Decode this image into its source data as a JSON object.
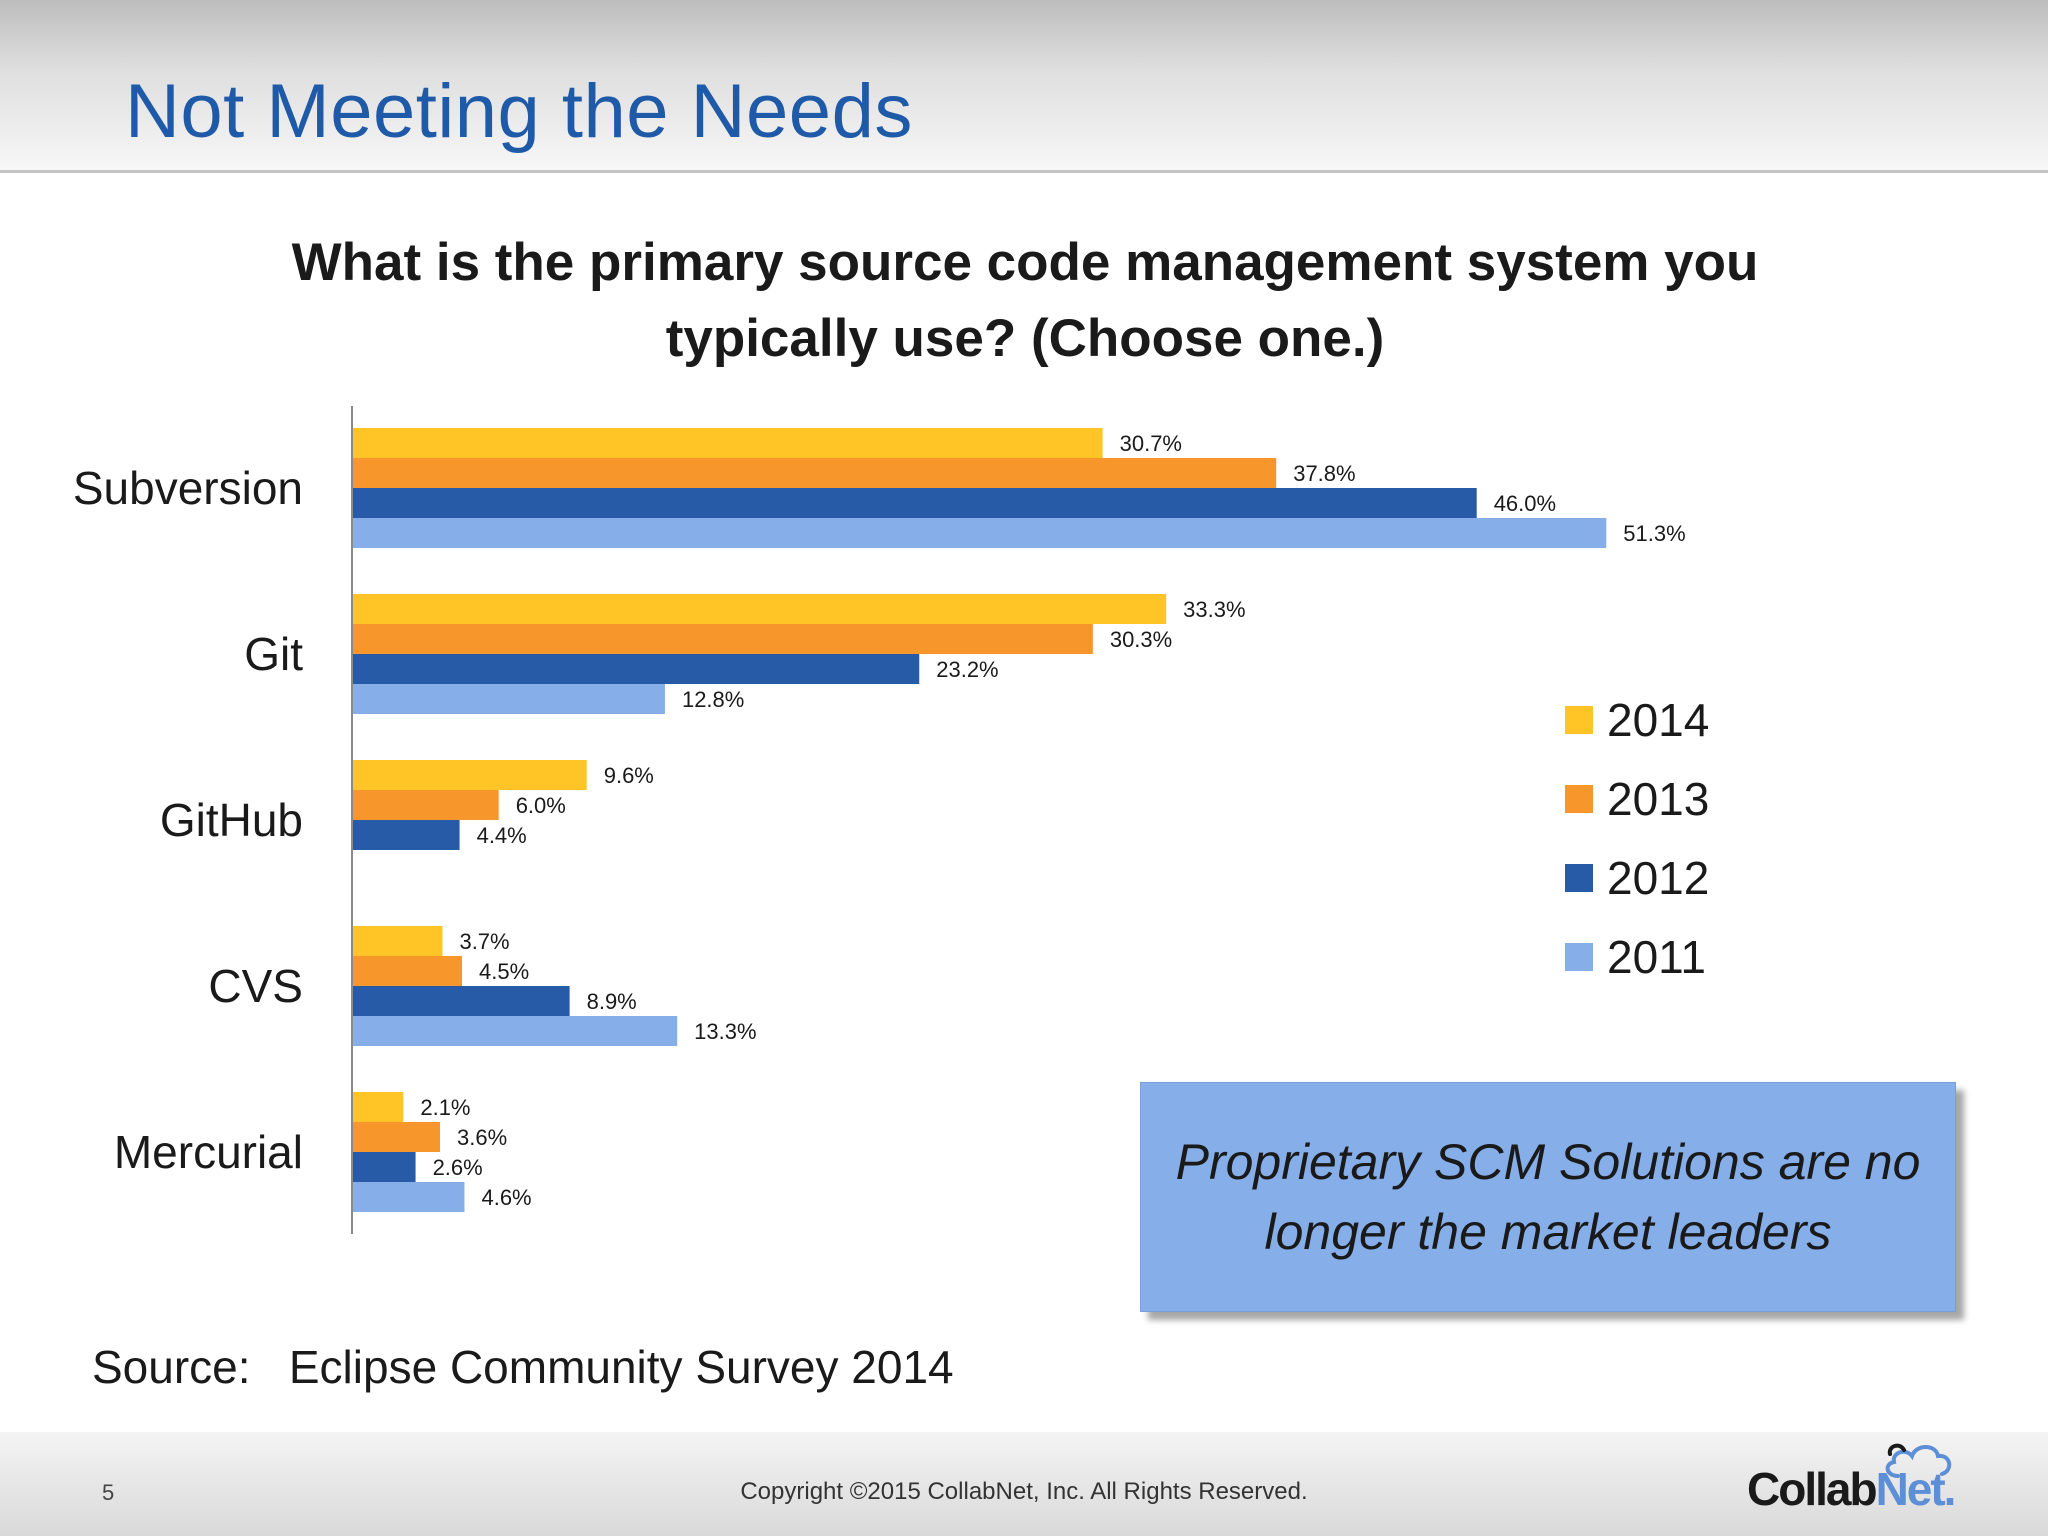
{
  "slide": {
    "title": "Not Meeting the Needs",
    "source_label": "Source:",
    "source_text": "Eclipse Community Survey 2014",
    "callout_line1": "Proprietary SCM Solutions are no",
    "callout_line2": "longer the market leaders",
    "page_number": "5",
    "copyright": "Copyright ©2015 CollabNet, Inc.  All Rights Reserved.",
    "logo_part1": "Collab",
    "logo_part2": "Net."
  },
  "chart_data": {
    "type": "bar",
    "orientation": "horizontal",
    "title_line1": "What is the primary source code management system you",
    "title_line2": "typically use? (Choose one.)",
    "categories": [
      "Subversion",
      "Git",
      "GitHub",
      "CVS",
      "Mercurial"
    ],
    "series": [
      {
        "name": "2014",
        "color": "#ffc425",
        "values": [
          30.7,
          33.3,
          9.6,
          3.7,
          2.1
        ],
        "labels": [
          "30.7%",
          "33.3%",
          "9.6%",
          "3.7%",
          "2.1%"
        ]
      },
      {
        "name": "2013",
        "color": "#f7962b",
        "values": [
          37.8,
          30.3,
          6.0,
          4.5,
          3.6
        ],
        "labels": [
          "37.8%",
          "30.3%",
          "6.0%",
          "4.5%",
          "3.6%"
        ]
      },
      {
        "name": "2012",
        "color": "#275ba8",
        "values": [
          46.0,
          23.2,
          4.4,
          8.9,
          2.6
        ],
        "labels": [
          "46.0%",
          "23.2%",
          "4.4%",
          "8.9%",
          "2.6%"
        ]
      },
      {
        "name": "2011",
        "color": "#86aee8",
        "values": [
          51.3,
          12.8,
          null,
          13.3,
          4.6
        ],
        "labels": [
          "51.3%",
          "12.8%",
          "",
          "13.3%",
          "4.6%"
        ]
      }
    ],
    "value_unit": "%",
    "grid": false,
    "legend_position": "right"
  }
}
